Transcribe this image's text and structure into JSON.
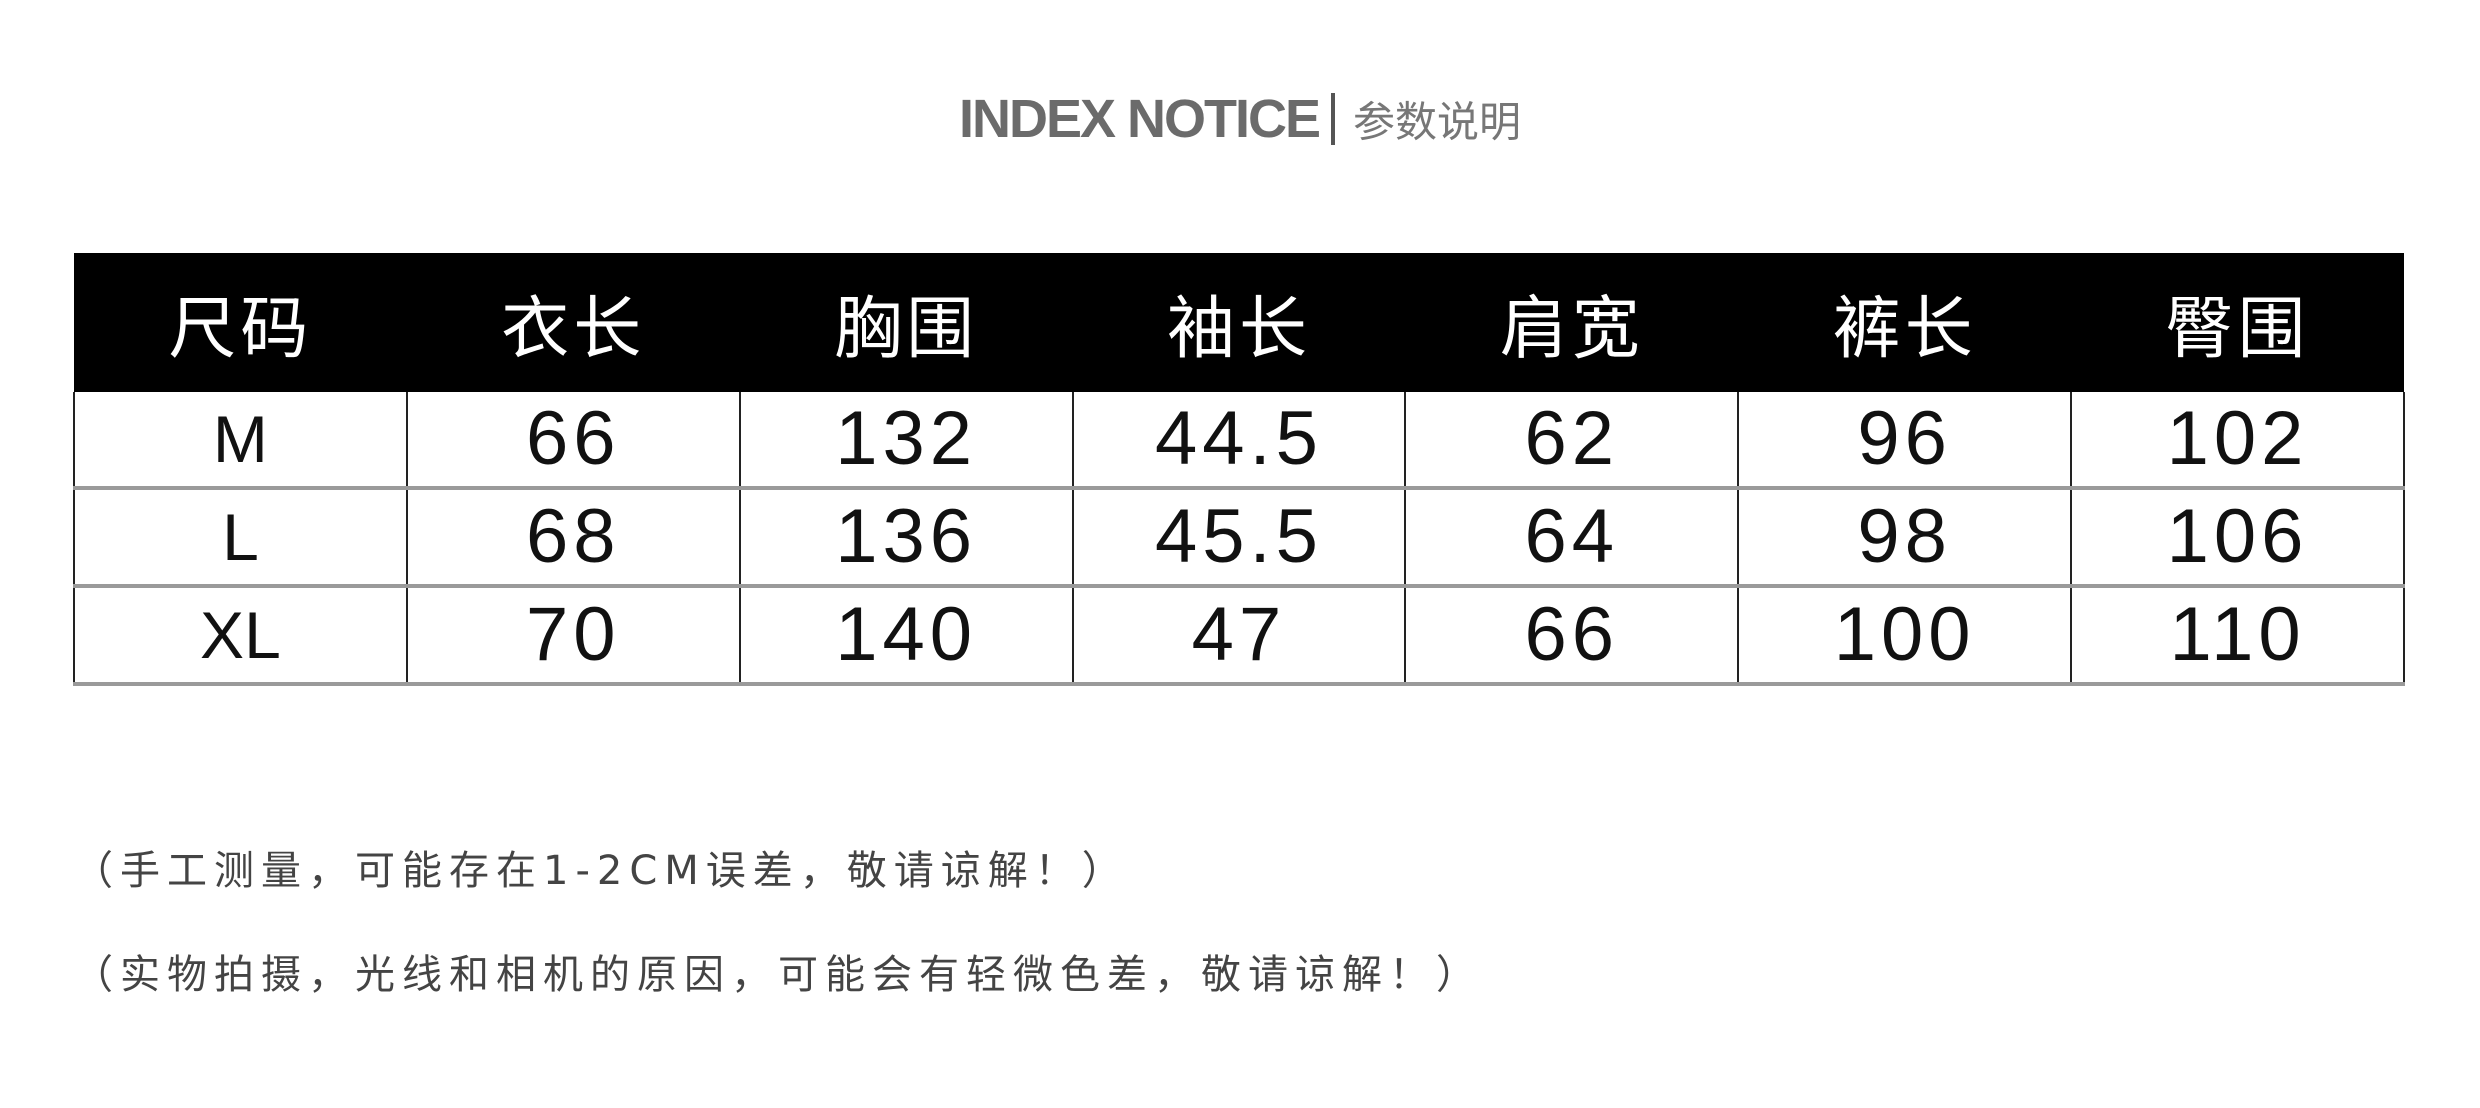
{
  "title": {
    "en": "INDEX NOTICE",
    "cn": "参数说明"
  },
  "table": {
    "headers": [
      "尺码",
      "衣长",
      "胸围",
      "袖长",
      "肩宽",
      "裤长",
      "臀围"
    ],
    "rows": [
      [
        "M",
        "66",
        "132",
        "44.5",
        "62",
        "96",
        "102"
      ],
      [
        "L",
        "68",
        "136",
        "45.5",
        "64",
        "98",
        "106"
      ],
      [
        "XL",
        "70",
        "140",
        "47",
        "66",
        "100",
        "110"
      ]
    ]
  },
  "notes": [
    "（手工测量，可能存在1-2CM误差，敬请谅解！）",
    "（实物拍摄，光线和相机的原因，可能会有轻微色差，敬请谅解！）"
  ]
}
